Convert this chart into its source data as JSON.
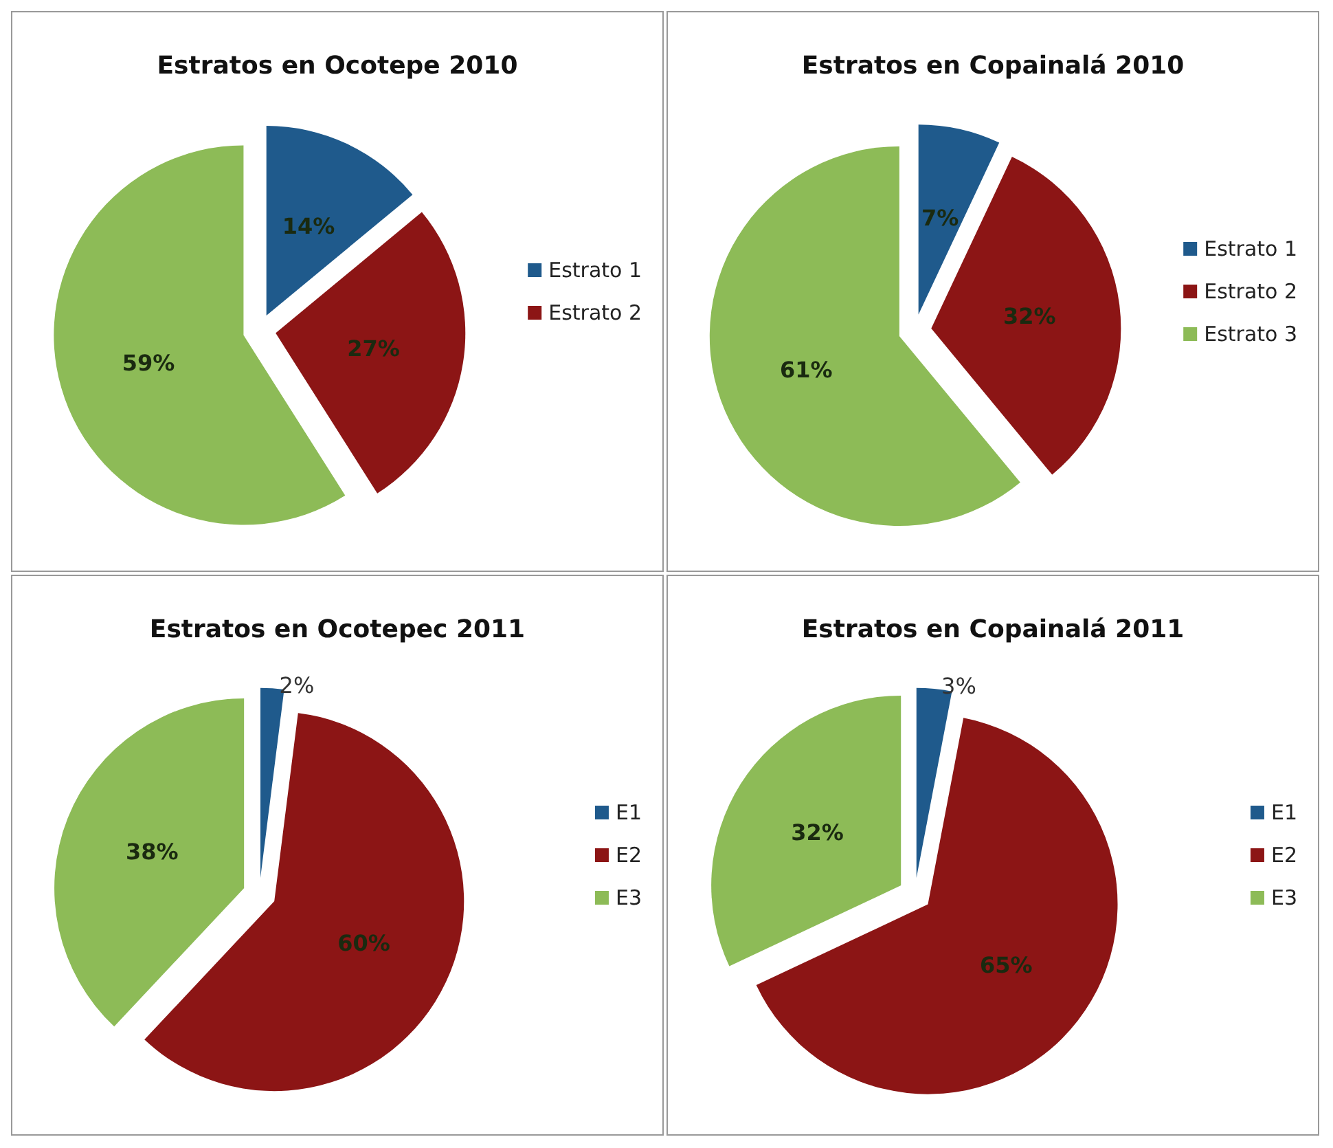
{
  "chart_data": [
    {
      "type": "pie",
      "title": "Estratos en Ocotepe 2010",
      "categories": [
        "Estrato 1",
        "Estrato 2",
        null
      ],
      "values": [
        14,
        27,
        59
      ],
      "colors": [
        "#1f5a8c",
        "#8c1515",
        "#8dbb57"
      ],
      "value_labels": [
        "14%",
        "27%",
        "59%"
      ],
      "legend": "right"
    },
    {
      "type": "pie",
      "title": "Estratos en Copainalá 2010",
      "categories": [
        "Estrato 1",
        "Estrato 2",
        "Estrato 3"
      ],
      "values": [
        7,
        32,
        61
      ],
      "colors": [
        "#1f5a8c",
        "#8c1515",
        "#8dbb57"
      ],
      "value_labels": [
        "7%",
        "32%",
        "61%"
      ],
      "legend": "right"
    },
    {
      "type": "pie",
      "title": "Estratos en Ocotepec 2011",
      "categories": [
        "E1",
        "E2",
        "E3"
      ],
      "values": [
        2,
        60,
        38
      ],
      "colors": [
        "#1f5a8c",
        "#8c1515",
        "#8dbb57"
      ],
      "value_labels": [
        "2%",
        "60%",
        "38%"
      ],
      "legend": "right"
    },
    {
      "type": "pie",
      "title": "Estratos en Copainalá 2011",
      "categories": [
        "E1",
        "E2",
        "E3"
      ],
      "values": [
        3,
        65,
        32
      ],
      "colors": [
        "#1f5a8c",
        "#8c1515",
        "#8dbb57"
      ],
      "value_labels": [
        "3%",
        "65%",
        "32%"
      ],
      "legend": "right"
    }
  ]
}
